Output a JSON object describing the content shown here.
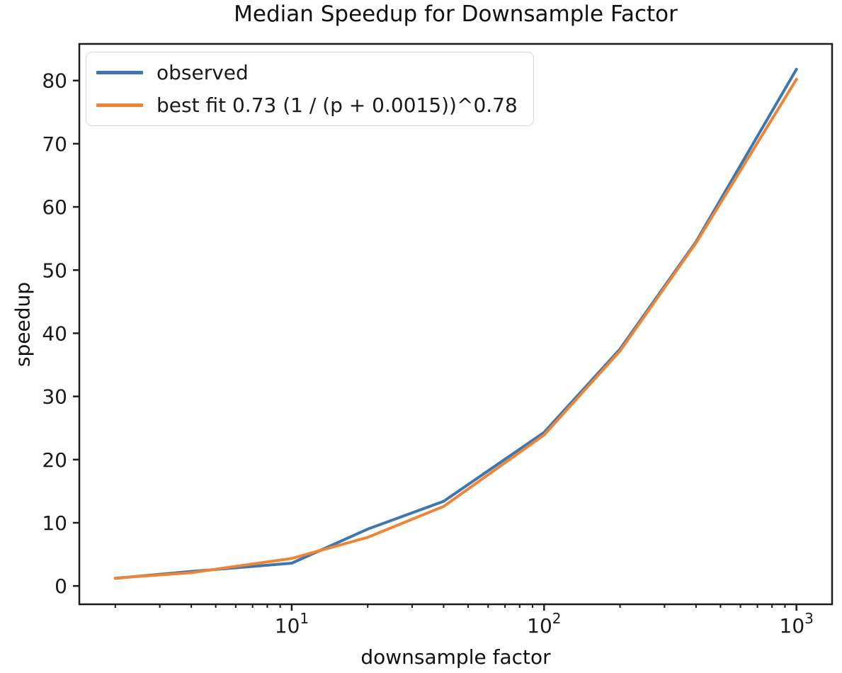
{
  "chart_data": {
    "type": "line",
    "title": "Median Speedup for Downsample Factor",
    "xlabel": "downsample factor",
    "ylabel": "speedup",
    "xscale": "log",
    "xlim": [
      1.44,
      1384
    ],
    "ylim": [
      -2.9,
      85.8
    ],
    "grid": false,
    "legend_position": "upper left",
    "x": [
      2,
      4,
      10,
      20,
      40,
      100,
      200,
      400,
      1000
    ],
    "series": [
      {
        "name": "observed",
        "color": "#3e76af",
        "values": [
          1.2,
          2.3,
          3.6,
          9.0,
          13.4,
          24.3,
          37.5,
          54.5,
          81.8
        ]
      },
      {
        "name": "best fit 0.73 (1 / (p + 0.0015))^0.78",
        "color": "#ee8435",
        "values": [
          1.25,
          2.1,
          4.35,
          7.7,
          12.6,
          23.9,
          37.2,
          54.3,
          80.2
        ]
      }
    ],
    "x_ticks": {
      "major": [
        10,
        100,
        1000
      ],
      "major_labels": [
        "10¹",
        "10²",
        "10³"
      ],
      "minor": [
        2,
        3,
        4,
        5,
        6,
        7,
        8,
        9,
        20,
        30,
        40,
        50,
        60,
        70,
        80,
        90,
        200,
        300,
        400,
        500,
        600,
        700,
        800,
        900
      ]
    },
    "y_ticks": {
      "values": [
        0,
        10,
        20,
        30,
        40,
        50,
        60,
        70,
        80
      ],
      "labels": [
        "0",
        "10",
        "20",
        "30",
        "40",
        "50",
        "60",
        "70",
        "80"
      ]
    }
  }
}
